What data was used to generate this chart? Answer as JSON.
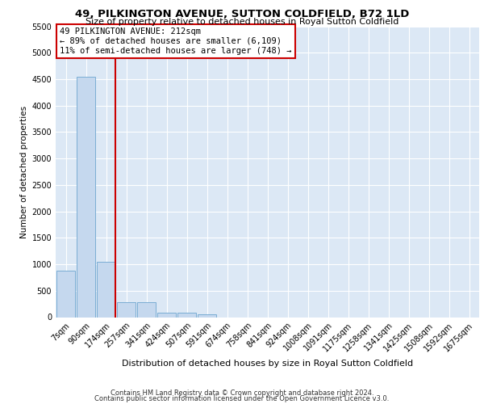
{
  "title1": "49, PILKINGTON AVENUE, SUTTON COLDFIELD, B72 1LD",
  "title2": "Size of property relative to detached houses in Royal Sutton Coldfield",
  "xlabel": "Distribution of detached houses by size in Royal Sutton Coldfield",
  "ylabel": "Number of detached properties",
  "footer1": "Contains HM Land Registry data © Crown copyright and database right 2024.",
  "footer2": "Contains public sector information licensed under the Open Government Licence v3.0.",
  "annotation_line1": "49 PILKINGTON AVENUE: 212sqm",
  "annotation_line2": "← 89% of detached houses are smaller (6,109)",
  "annotation_line3": "11% of semi-detached houses are larger (748) →",
  "bar_color": "#c5d8ee",
  "bar_edge_color": "#7aadd4",
  "red_color": "#cc0000",
  "bg_color": "#dce8f5",
  "categories": [
    "7sqm",
    "90sqm",
    "174sqm",
    "257sqm",
    "341sqm",
    "424sqm",
    "507sqm",
    "591sqm",
    "674sqm",
    "758sqm",
    "841sqm",
    "924sqm",
    "1008sqm",
    "1091sqm",
    "1175sqm",
    "1258sqm",
    "1341sqm",
    "1425sqm",
    "1508sqm",
    "1592sqm",
    "1675sqm"
  ],
  "values": [
    880,
    4550,
    1050,
    290,
    280,
    90,
    90,
    60,
    0,
    0,
    0,
    0,
    0,
    0,
    0,
    0,
    0,
    0,
    0,
    0,
    0
  ],
  "red_line_index": 2,
  "ylim": [
    0,
    5500
  ],
  "yticks": [
    0,
    500,
    1000,
    1500,
    2000,
    2500,
    3000,
    3500,
    4000,
    4500,
    5000,
    5500
  ],
  "title1_fontsize": 9.5,
  "title2_fontsize": 8.0,
  "ylabel_fontsize": 7.5,
  "xlabel_fontsize": 8.0,
  "tick_fontsize": 7.0,
  "annotation_fontsize": 7.5,
  "footer_fontsize": 6.0
}
